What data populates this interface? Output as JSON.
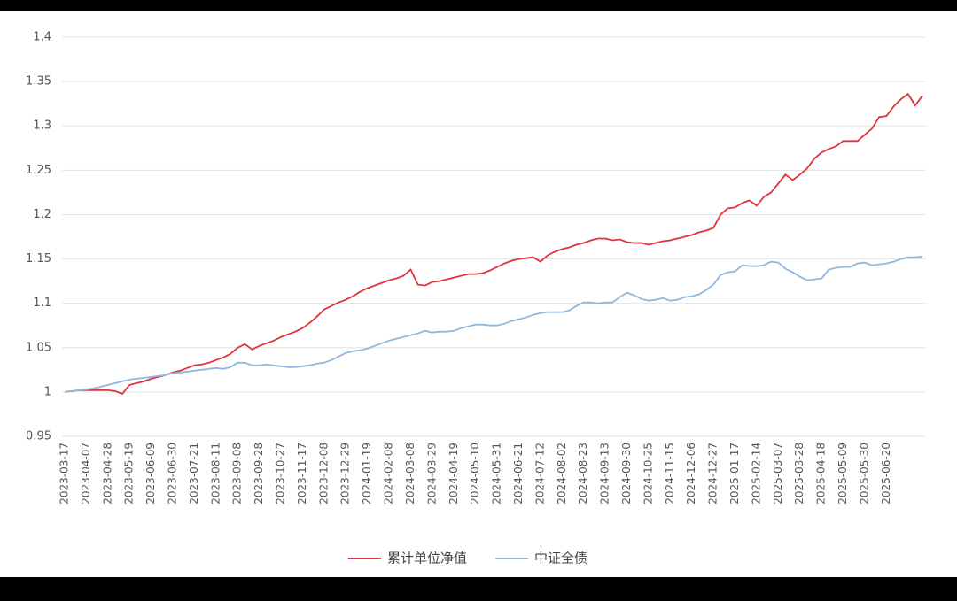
{
  "chart_data": {
    "type": "line",
    "categories": [
      "2023-03-17",
      null,
      null,
      "2023-04-07",
      null,
      null,
      "2023-04-28",
      null,
      null,
      "2023-05-19",
      null,
      null,
      "2023-06-09",
      null,
      null,
      "2023-06-30",
      null,
      null,
      "2023-07-21",
      null,
      null,
      "2023-08-11",
      null,
      null,
      "2023-09-08",
      null,
      null,
      "2023-09-28",
      null,
      null,
      "2023-10-27",
      null,
      null,
      "2023-11-17",
      null,
      null,
      "2023-12-08",
      null,
      null,
      "2023-12-29",
      null,
      null,
      "2024-01-19",
      null,
      null,
      "2024-02-08",
      null,
      null,
      "2024-03-08",
      null,
      null,
      "2024-03-29",
      null,
      null,
      "2024-04-19",
      null,
      null,
      "2024-05-10",
      null,
      null,
      "2024-05-31",
      null,
      null,
      "2024-06-21",
      null,
      null,
      "2024-07-12",
      null,
      null,
      "2024-08-02",
      null,
      null,
      "2024-08-23",
      null,
      null,
      "2024-09-13",
      null,
      null,
      "2024-09-30",
      null,
      null,
      "2024-10-25",
      null,
      null,
      "2024-11-15",
      null,
      null,
      "2024-12-06",
      null,
      null,
      "2024-12-27",
      null,
      null,
      "2025-01-17",
      null,
      null,
      "2025-02-14",
      null,
      null,
      "2025-03-07",
      null,
      null,
      "2025-03-28",
      null,
      null,
      "2025-04-18",
      null,
      null,
      "2025-05-09",
      null,
      null,
      "2025-05-30",
      null,
      null,
      "2025-06-20",
      null,
      null,
      null,
      null,
      null
    ],
    "series": [
      {
        "name": "累计单位净值",
        "color": "#e0343b",
        "values": [
          1.0,
          1.001,
          1.002,
          1.002,
          1.002,
          1.002,
          1.002,
          1.001,
          0.998,
          1.008,
          1.01,
          1.012,
          1.015,
          1.017,
          1.019,
          1.022,
          1.024,
          1.027,
          1.03,
          1.031,
          1.033,
          1.036,
          1.039,
          1.043,
          1.05,
          1.054,
          1.048,
          1.052,
          1.055,
          1.058,
          1.062,
          1.065,
          1.068,
          1.072,
          1.078,
          1.085,
          1.093,
          1.097,
          1.101,
          1.104,
          1.108,
          1.113,
          1.117,
          1.12,
          1.123,
          1.126,
          1.128,
          1.131,
          1.138,
          1.121,
          1.12,
          1.124,
          1.125,
          1.127,
          1.129,
          1.131,
          1.133,
          1.133,
          1.134,
          1.137,
          1.141,
          1.145,
          1.148,
          1.15,
          1.151,
          1.152,
          1.147,
          1.154,
          1.158,
          1.161,
          1.163,
          1.166,
          1.168,
          1.171,
          1.173,
          1.173,
          1.171,
          1.172,
          1.169,
          1.168,
          1.168,
          1.166,
          1.168,
          1.17,
          1.171,
          1.173,
          1.175,
          1.177,
          1.18,
          1.182,
          1.185,
          1.2,
          1.207,
          1.208,
          1.213,
          1.216,
          1.21,
          1.22,
          1.225,
          1.235,
          1.245,
          1.239,
          1.245,
          1.252,
          1.263,
          1.27,
          1.274,
          1.277,
          1.283,
          1.283,
          1.283,
          1.29,
          1.297,
          1.31,
          1.311,
          1.322,
          1.33,
          1.336,
          1.323,
          1.334
        ]
      },
      {
        "name": "中证全债",
        "color": "#8fb8dc",
        "values": [
          1.0,
          1.001,
          1.002,
          1.003,
          1.004,
          1.006,
          1.008,
          1.01,
          1.012,
          1.014,
          1.015,
          1.016,
          1.017,
          1.018,
          1.019,
          1.021,
          1.022,
          1.023,
          1.024,
          1.025,
          1.026,
          1.027,
          1.026,
          1.028,
          1.033,
          1.033,
          1.03,
          1.03,
          1.031,
          1.03,
          1.029,
          1.028,
          1.028,
          1.029,
          1.03,
          1.032,
          1.033,
          1.036,
          1.04,
          1.044,
          1.046,
          1.047,
          1.049,
          1.052,
          1.055,
          1.058,
          1.06,
          1.062,
          1.064,
          1.066,
          1.069,
          1.067,
          1.068,
          1.068,
          1.069,
          1.072,
          1.074,
          1.076,
          1.076,
          1.075,
          1.075,
          1.077,
          1.08,
          1.082,
          1.084,
          1.087,
          1.089,
          1.09,
          1.09,
          1.09,
          1.092,
          1.097,
          1.101,
          1.101,
          1.1,
          1.101,
          1.101,
          1.107,
          1.112,
          1.109,
          1.105,
          1.103,
          1.104,
          1.106,
          1.103,
          1.104,
          1.107,
          1.108,
          1.11,
          1.115,
          1.121,
          1.132,
          1.135,
          1.136,
          1.143,
          1.142,
          1.142,
          1.143,
          1.147,
          1.146,
          1.139,
          1.135,
          1.13,
          1.126,
          1.127,
          1.128,
          1.138,
          1.14,
          1.141,
          1.141,
          1.145,
          1.146,
          1.143,
          1.144,
          1.145,
          1.147,
          1.15,
          1.152,
          1.152,
          1.153
        ]
      }
    ],
    "ylim": [
      0.95,
      1.4
    ],
    "yticks": [
      0.95,
      1,
      1.05,
      1.1,
      1.15,
      1.2,
      1.25,
      1.3,
      1.35,
      1.4
    ],
    "grid": true,
    "legend": "bottom"
  }
}
